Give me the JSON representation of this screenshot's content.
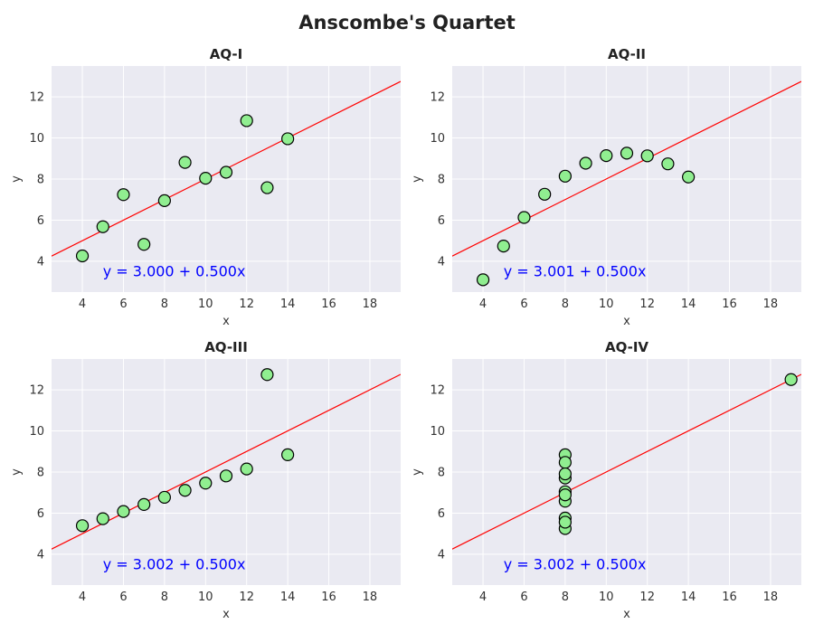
{
  "figure": {
    "title": "Anscombe's Quartet"
  },
  "chart_data": [
    {
      "type": "scatter",
      "title": "AQ-I",
      "xlabel": "x",
      "ylabel": "y",
      "xlim": [
        2.5,
        19.5
      ],
      "ylim": [
        2.5,
        13.5
      ],
      "xticks": [
        4,
        6,
        8,
        10,
        12,
        14,
        16,
        18
      ],
      "yticks": [
        4,
        6,
        8,
        10,
        12
      ],
      "grid": true,
      "points": {
        "x": [
          10,
          8,
          13,
          9,
          11,
          14,
          6,
          4,
          12,
          7,
          5
        ],
        "y": [
          8.04,
          6.95,
          7.58,
          8.81,
          8.33,
          9.96,
          7.24,
          4.26,
          10.84,
          4.82,
          5.68
        ]
      },
      "fit": {
        "intercept": 3.0,
        "slope": 0.5,
        "color": "#ff0000"
      },
      "equation_label": "y = 3.000 + 0.500x",
      "marker_color": "#90ee90",
      "marker_edge": "#000000"
    },
    {
      "type": "scatter",
      "title": "AQ-II",
      "xlabel": "x",
      "ylabel": "y",
      "xlim": [
        2.5,
        19.5
      ],
      "ylim": [
        2.5,
        13.5
      ],
      "xticks": [
        4,
        6,
        8,
        10,
        12,
        14,
        16,
        18
      ],
      "yticks": [
        4,
        6,
        8,
        10,
        12
      ],
      "grid": true,
      "points": {
        "x": [
          10,
          8,
          13,
          9,
          11,
          14,
          6,
          4,
          12,
          7,
          5
        ],
        "y": [
          9.14,
          8.14,
          8.74,
          8.77,
          9.26,
          8.1,
          6.13,
          3.1,
          9.13,
          7.26,
          4.74
        ]
      },
      "fit": {
        "intercept": 3.001,
        "slope": 0.5,
        "color": "#ff0000"
      },
      "equation_label": "y = 3.001 + 0.500x",
      "marker_color": "#90ee90",
      "marker_edge": "#000000"
    },
    {
      "type": "scatter",
      "title": "AQ-III",
      "xlabel": "x",
      "ylabel": "y",
      "xlim": [
        2.5,
        19.5
      ],
      "ylim": [
        2.5,
        13.5
      ],
      "xticks": [
        4,
        6,
        8,
        10,
        12,
        14,
        16,
        18
      ],
      "yticks": [
        4,
        6,
        8,
        10,
        12
      ],
      "grid": true,
      "points": {
        "x": [
          10,
          8,
          13,
          9,
          11,
          14,
          6,
          4,
          12,
          7,
          5
        ],
        "y": [
          7.46,
          6.77,
          12.74,
          7.11,
          7.81,
          8.84,
          6.08,
          5.39,
          8.15,
          6.42,
          5.73
        ]
      },
      "fit": {
        "intercept": 3.002,
        "slope": 0.5,
        "color": "#ff0000"
      },
      "equation_label": "y = 3.002 + 0.500x",
      "marker_color": "#90ee90",
      "marker_edge": "#000000"
    },
    {
      "type": "scatter",
      "title": "AQ-IV",
      "xlabel": "x",
      "ylabel": "y",
      "xlim": [
        2.5,
        19.5
      ],
      "ylim": [
        2.5,
        13.5
      ],
      "xticks": [
        4,
        6,
        8,
        10,
        12,
        14,
        16,
        18
      ],
      "yticks": [
        4,
        6,
        8,
        10,
        12
      ],
      "grid": true,
      "points": {
        "x": [
          8,
          8,
          8,
          8,
          8,
          8,
          8,
          19,
          8,
          8,
          8
        ],
        "y": [
          6.58,
          5.76,
          7.71,
          8.84,
          8.47,
          7.04,
          5.25,
          12.5,
          5.56,
          7.91,
          6.89
        ]
      },
      "fit": {
        "intercept": 3.002,
        "slope": 0.5,
        "color": "#ff0000"
      },
      "equation_label": "y = 3.002 + 0.500x",
      "marker_color": "#90ee90",
      "marker_edge": "#000000"
    }
  ]
}
